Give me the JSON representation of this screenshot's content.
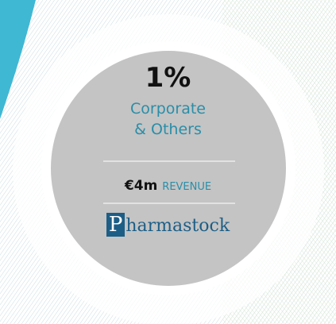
{
  "card": {
    "percent": "1%",
    "segment": "Corporate\n& Others",
    "revenue_value": "€4m",
    "revenue_label": "REVENUE",
    "logo_initial": "P",
    "logo_rest": "harmastock"
  }
}
